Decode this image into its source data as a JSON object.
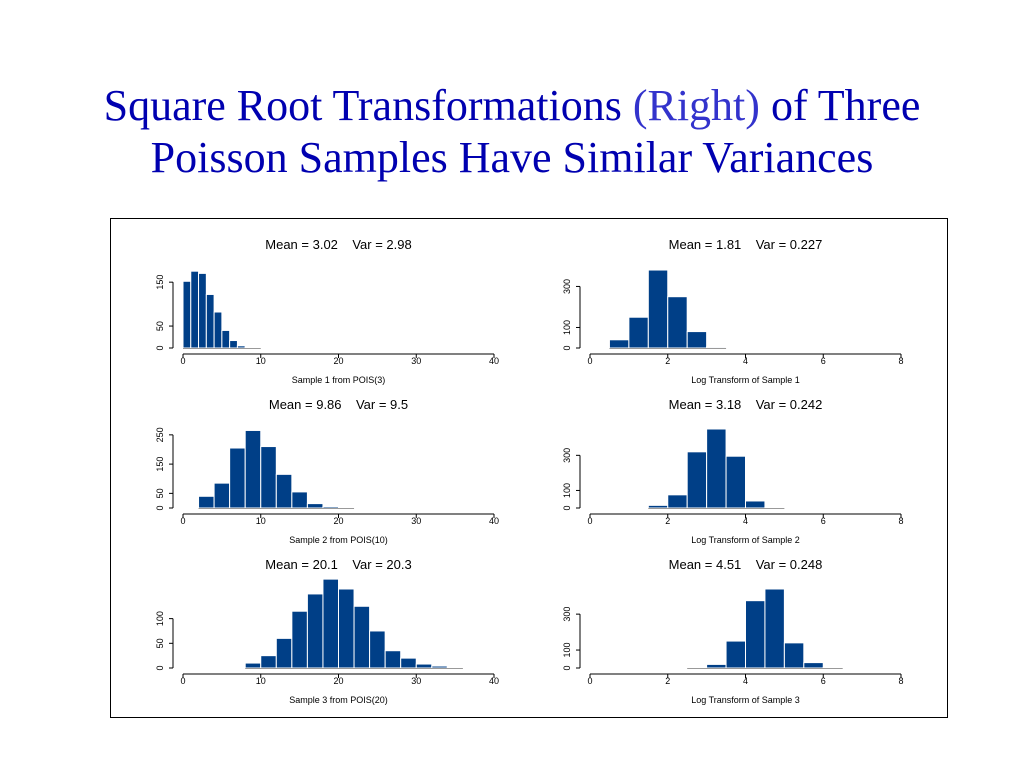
{
  "slide": {
    "title_line1_a": "Square Root Transformations",
    "title_line1_b": "(Right)",
    "title_line1_c": "of Three",
    "title_line2": "Poisson Samples Have Similar Variances"
  },
  "colors": {
    "title": "#0000b0",
    "title_highlight": "#3333cc",
    "bar_fill": "#003f87",
    "bar_edge": "#ffffff"
  },
  "chart_data": [
    {
      "type": "bar",
      "title": "Mean = 3.02    Var = 2.98",
      "xlabel": "Sample 1 from POIS(3)",
      "xlim": [
        0,
        40
      ],
      "xticks": [
        0,
        10,
        20,
        30,
        40
      ],
      "ylim": [
        0,
        180
      ],
      "yticks": [
        0,
        50,
        150
      ],
      "bins": [
        [
          0,
          1
        ],
        [
          1,
          2
        ],
        [
          2,
          3
        ],
        [
          3,
          4
        ],
        [
          4,
          5
        ],
        [
          5,
          6
        ],
        [
          6,
          7
        ],
        [
          7,
          8
        ],
        [
          8,
          9
        ],
        [
          9,
          10
        ]
      ],
      "values": [
        152,
        175,
        170,
        122,
        82,
        40,
        17,
        5,
        2,
        1
      ]
    },
    {
      "type": "bar",
      "title": "Mean = 1.81    Var = 0.227",
      "xlabel": "Log Transform of Sample 1",
      "xlim": [
        0,
        8
      ],
      "xticks": [
        0,
        2,
        4,
        6,
        8
      ],
      "ylim": [
        0,
        385
      ],
      "yticks": [
        0,
        100,
        300
      ],
      "bins": [
        [
          0.5,
          1
        ],
        [
          1,
          1.5
        ],
        [
          1.5,
          2
        ],
        [
          2,
          2.5
        ],
        [
          2.5,
          3
        ],
        [
          3,
          3.5
        ]
      ],
      "values": [
        40,
        150,
        380,
        250,
        80,
        5
      ]
    },
    {
      "type": "bar",
      "title": "Mean = 9.86    Var = 9.5",
      "xlabel": "Sample 2 from POIS(10)",
      "xlim": [
        0,
        40
      ],
      "xticks": [
        0,
        10,
        20,
        30,
        40
      ],
      "ylim": [
        0,
        270
      ],
      "yticks": [
        0,
        50,
        150,
        250
      ],
      "bins": [
        [
          2,
          4
        ],
        [
          4,
          6
        ],
        [
          6,
          8
        ],
        [
          8,
          10
        ],
        [
          10,
          12
        ],
        [
          12,
          14
        ],
        [
          14,
          16
        ],
        [
          16,
          18
        ],
        [
          18,
          20
        ],
        [
          20,
          22
        ]
      ],
      "values": [
        40,
        85,
        205,
        265,
        210,
        115,
        55,
        15,
        5,
        1
      ]
    },
    {
      "type": "bar",
      "title": "Mean = 3.18    Var = 0.242",
      "xlabel": "Log Transform of Sample 2",
      "xlim": [
        0,
        8
      ],
      "xticks": [
        0,
        2,
        4,
        6,
        8
      ],
      "ylim": [
        0,
        450
      ],
      "yticks": [
        0,
        100,
        300
      ],
      "bins": [
        [
          1.5,
          2
        ],
        [
          2,
          2.5
        ],
        [
          2.5,
          3
        ],
        [
          3,
          3.5
        ],
        [
          3.5,
          4
        ],
        [
          4,
          4.5
        ],
        [
          4.5,
          5
        ]
      ],
      "values": [
        15,
        75,
        320,
        450,
        295,
        40,
        3
      ]
    },
    {
      "type": "bar",
      "title": "Mean = 20.1    Var = 20.3",
      "xlabel": "Sample 3 from POIS(20)",
      "xlim": [
        0,
        40
      ],
      "xticks": [
        0,
        10,
        20,
        30,
        40
      ],
      "ylim": [
        0,
        160
      ],
      "yticks": [
        0,
        50,
        100
      ],
      "bins": [
        [
          8,
          10
        ],
        [
          10,
          12
        ],
        [
          12,
          14
        ],
        [
          14,
          16
        ],
        [
          16,
          18
        ],
        [
          18,
          20
        ],
        [
          20,
          22
        ],
        [
          22,
          24
        ],
        [
          24,
          26
        ],
        [
          26,
          28
        ],
        [
          28,
          30
        ],
        [
          30,
          32
        ],
        [
          32,
          34
        ],
        [
          34,
          36
        ]
      ],
      "values": [
        10,
        25,
        60,
        115,
        150,
        180,
        160,
        125,
        75,
        35,
        20,
        8,
        4,
        2
      ]
    },
    {
      "type": "bar",
      "title": "Mean = 4.51    Var = 0.248",
      "xlabel": "Log Transform of Sample 3",
      "xlim": [
        0,
        8
      ],
      "xticks": [
        0,
        2,
        4,
        6,
        8
      ],
      "ylim": [
        0,
        440
      ],
      "yticks": [
        0,
        100,
        300
      ],
      "bins": [
        [
          2.5,
          3
        ],
        [
          3,
          3.5
        ],
        [
          3.5,
          4
        ],
        [
          4,
          4.5
        ],
        [
          4.5,
          5
        ],
        [
          5,
          5.5
        ],
        [
          5.5,
          6
        ],
        [
          6,
          6.5
        ]
      ],
      "values": [
        3,
        20,
        150,
        375,
        440,
        140,
        30,
        3
      ]
    }
  ]
}
